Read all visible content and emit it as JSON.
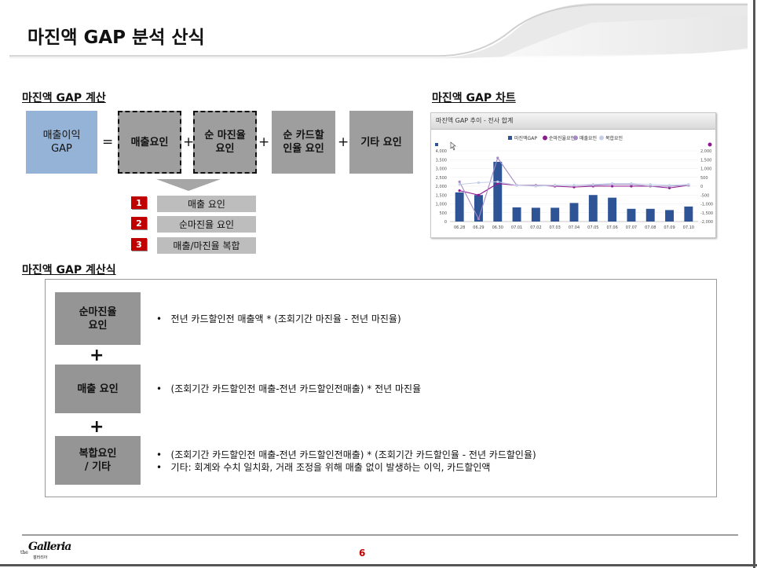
{
  "page": {
    "title": "마진액 GAP 분석 산식",
    "number": "6"
  },
  "section_calc": {
    "heading": "마진액 GAP 계산",
    "lhs": "매출이익\nGAP",
    "eq": "=",
    "plus": "+",
    "factors": [
      "매출요인",
      "순 마진율\n요인",
      "순 카드할\n인율 요인",
      "기타 요인"
    ],
    "items": [
      {
        "num": "1",
        "label": "매출 요인"
      },
      {
        "num": "2",
        "label": "순마진율 요인"
      },
      {
        "num": "3",
        "label": "매출/마진율 복합"
      }
    ]
  },
  "section_chart": {
    "heading": "마진액 GAP 차트"
  },
  "chart_data": {
    "type": "bar",
    "title": "마진액 GAP 추이 - 전사 합계",
    "legend": [
      "마진액GAP",
      "순마진율요인",
      "매출요인",
      "복합요인"
    ],
    "legend_placement": "top",
    "categories": [
      "06.28",
      "06.29",
      "06.30",
      "07.01",
      "07.02",
      "07.03",
      "07.04",
      "07.05",
      "07.06",
      "07.07",
      "07.08",
      "07.09",
      "07.10"
    ],
    "left_ticks": [
      "4,000",
      "3,500",
      "3,000",
      "2,500",
      "2,000",
      "1,500",
      "1,000",
      "500",
      "0"
    ],
    "right_ticks": [
      "2,000",
      "1,500",
      "1,000",
      "500",
      "0",
      "-500",
      "-1,000",
      "-1,500",
      "-2,000"
    ],
    "ylim_left": [
      0,
      4000
    ],
    "ylim_right": [
      -2000,
      2000
    ],
    "series": [
      {
        "name": "마진액GAP",
        "axis": "left",
        "type": "bar",
        "color": "#2f5496",
        "values": [
          1650,
          1500,
          3380,
          800,
          780,
          780,
          1050,
          1500,
          1350,
          720,
          720,
          650,
          850
        ]
      },
      {
        "name": "순마진율요인",
        "axis": "right",
        "type": "line",
        "color": "#8e1b8e",
        "values": [
          -250,
          -500,
          150,
          50,
          50,
          0,
          -50,
          0,
          0,
          0,
          0,
          -100,
          50
        ]
      },
      {
        "name": "매출요인",
        "axis": "right",
        "type": "line",
        "color": "#a58bc4",
        "values": [
          250,
          -1850,
          1600,
          50,
          50,
          50,
          50,
          50,
          100,
          100,
          0,
          0,
          50
        ]
      },
      {
        "name": "복합요인",
        "axis": "right",
        "type": "line",
        "color": "#c5cfe8",
        "values": [
          100,
          200,
          250,
          50,
          0,
          50,
          50,
          100,
          150,
          150,
          100,
          50,
          100
        ]
      }
    ],
    "grid": true
  },
  "section_formula": {
    "heading": "마진액 GAP 계산식",
    "rows": [
      {
        "label": "순마진율\n요인",
        "bullets": [
          "전년 카드할인전  매출액 * (조회기간  마진율 - 전년  마진율)"
        ]
      },
      {
        "label": "매출 요인",
        "bullets": [
          "(조회기간 카드할인전  매출-전년  카드할인전매출) * 전년 마진율"
        ]
      },
      {
        "label": "복합요인\n/ 기타",
        "bullets": [
          "(조회기간 카드할인전  매출-전년  카드할인전매출) * (조회기간  카드할인율 - 전년 카드할인율)",
          "기타: 회계와 수치 일치화, 거래 조정을 위해 매출 없이 발생하는 이익, 카드할인액"
        ]
      }
    ],
    "plus": "+"
  },
  "logo": {
    "text": "Galleria",
    "prefix": "the",
    "sub": "갤러리아"
  }
}
